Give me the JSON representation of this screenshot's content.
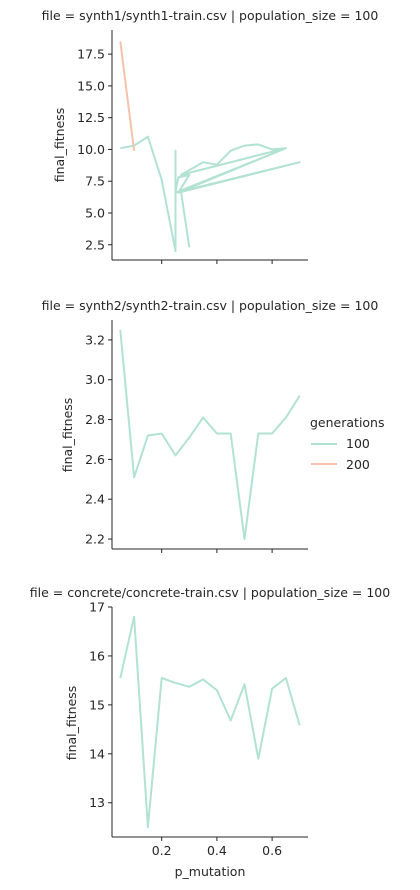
{
  "colors": {
    "series_100": "#b2e2d2",
    "series_200": "#f6c2ac",
    "axis": "#262626"
  },
  "legend": {
    "title": "generations",
    "entries": [
      {
        "label": "100",
        "color": "#b2e2d2"
      },
      {
        "label": "200",
        "color": "#f6c2ac"
      }
    ],
    "placement": "right"
  },
  "chart_data": [
    {
      "type": "line",
      "title": "file = synth1/synth1-train.csv | population_size = 100",
      "xlabel": "",
      "ylabel": "final_fitness",
      "xlim": [
        0.02,
        0.73
      ],
      "ylim": [
        1.3,
        19.4
      ],
      "xticks": [
        0.2,
        0.4,
        0.6
      ],
      "xtick_labels": [
        "",
        "",
        ""
      ],
      "yticks": [
        2.5,
        5.0,
        7.5,
        10.0,
        12.5,
        15.0,
        17.5
      ],
      "ytick_labels": [
        "2.5",
        "5.0",
        "7.5",
        "10.0",
        "12.5",
        "15.0",
        "17.5"
      ],
      "series": [
        {
          "name": "100",
          "color": "#b2e2d2",
          "x": [
            0.05,
            0.1,
            0.15,
            0.2,
            0.25,
            0.25,
            0.25,
            0.26,
            0.3,
            0.26,
            0.7,
            0.25,
            0.65,
            0.27,
            0.35,
            0.4,
            0.45,
            0.5,
            0.55,
            0.6,
            0.65,
            0.27,
            0.3
          ],
          "y": [
            10.1,
            10.3,
            11.0,
            7.6,
            2.0,
            9.9,
            6.7,
            7.8,
            8.0,
            6.6,
            9.0,
            6.6,
            10.1,
            8.0,
            9.0,
            8.8,
            9.9,
            10.3,
            10.4,
            10.0,
            10.1,
            6.7,
            2.3
          ]
        },
        {
          "name": "200",
          "color": "#f6c2ac",
          "x": [
            0.05,
            0.1
          ],
          "y": [
            18.5,
            9.9
          ]
        }
      ]
    },
    {
      "type": "line",
      "title": "file = synth2/synth2-train.csv | population_size = 100",
      "xlabel": "",
      "ylabel": "final_fitness",
      "xlim": [
        0.02,
        0.73
      ],
      "ylim": [
        2.15,
        3.3
      ],
      "xticks": [
        0.2,
        0.4,
        0.6
      ],
      "xtick_labels": [
        "",
        "",
        ""
      ],
      "yticks": [
        2.2,
        2.4,
        2.6,
        2.8,
        3.0,
        3.2
      ],
      "ytick_labels": [
        "2.2",
        "2.4",
        "2.6",
        "2.8",
        "3.0",
        "3.2"
      ],
      "series": [
        {
          "name": "100",
          "color": "#b2e2d2",
          "x": [
            0.05,
            0.1,
            0.15,
            0.2,
            0.25,
            0.3,
            0.35,
            0.4,
            0.45,
            0.5,
            0.55,
            0.6,
            0.65,
            0.7
          ],
          "y": [
            3.25,
            2.51,
            2.72,
            2.73,
            2.62,
            2.71,
            2.81,
            2.73,
            2.73,
            2.2,
            2.73,
            2.73,
            2.81,
            2.92
          ]
        }
      ]
    },
    {
      "type": "line",
      "title": "file = concrete/concrete-train.csv | population_size = 100",
      "xlabel": "p_mutation",
      "ylabel": "final_fitness",
      "xlim": [
        0.02,
        0.73
      ],
      "ylim": [
        12.3,
        17.0
      ],
      "xticks": [
        0.2,
        0.4,
        0.6
      ],
      "xtick_labels": [
        "0.2",
        "0.4",
        "0.6"
      ],
      "yticks": [
        13,
        14,
        15,
        16,
        17
      ],
      "ytick_labels": [
        "13",
        "14",
        "15",
        "16",
        "17"
      ],
      "series": [
        {
          "name": "100",
          "color": "#b2e2d2",
          "x": [
            0.05,
            0.1,
            0.15,
            0.2,
            0.25,
            0.3,
            0.35,
            0.4,
            0.45,
            0.5,
            0.55,
            0.6,
            0.65,
            0.7
          ],
          "y": [
            15.55,
            16.8,
            12.5,
            15.55,
            15.45,
            15.37,
            15.52,
            15.3,
            14.68,
            15.42,
            13.9,
            15.33,
            15.55,
            14.58
          ]
        }
      ]
    }
  ]
}
